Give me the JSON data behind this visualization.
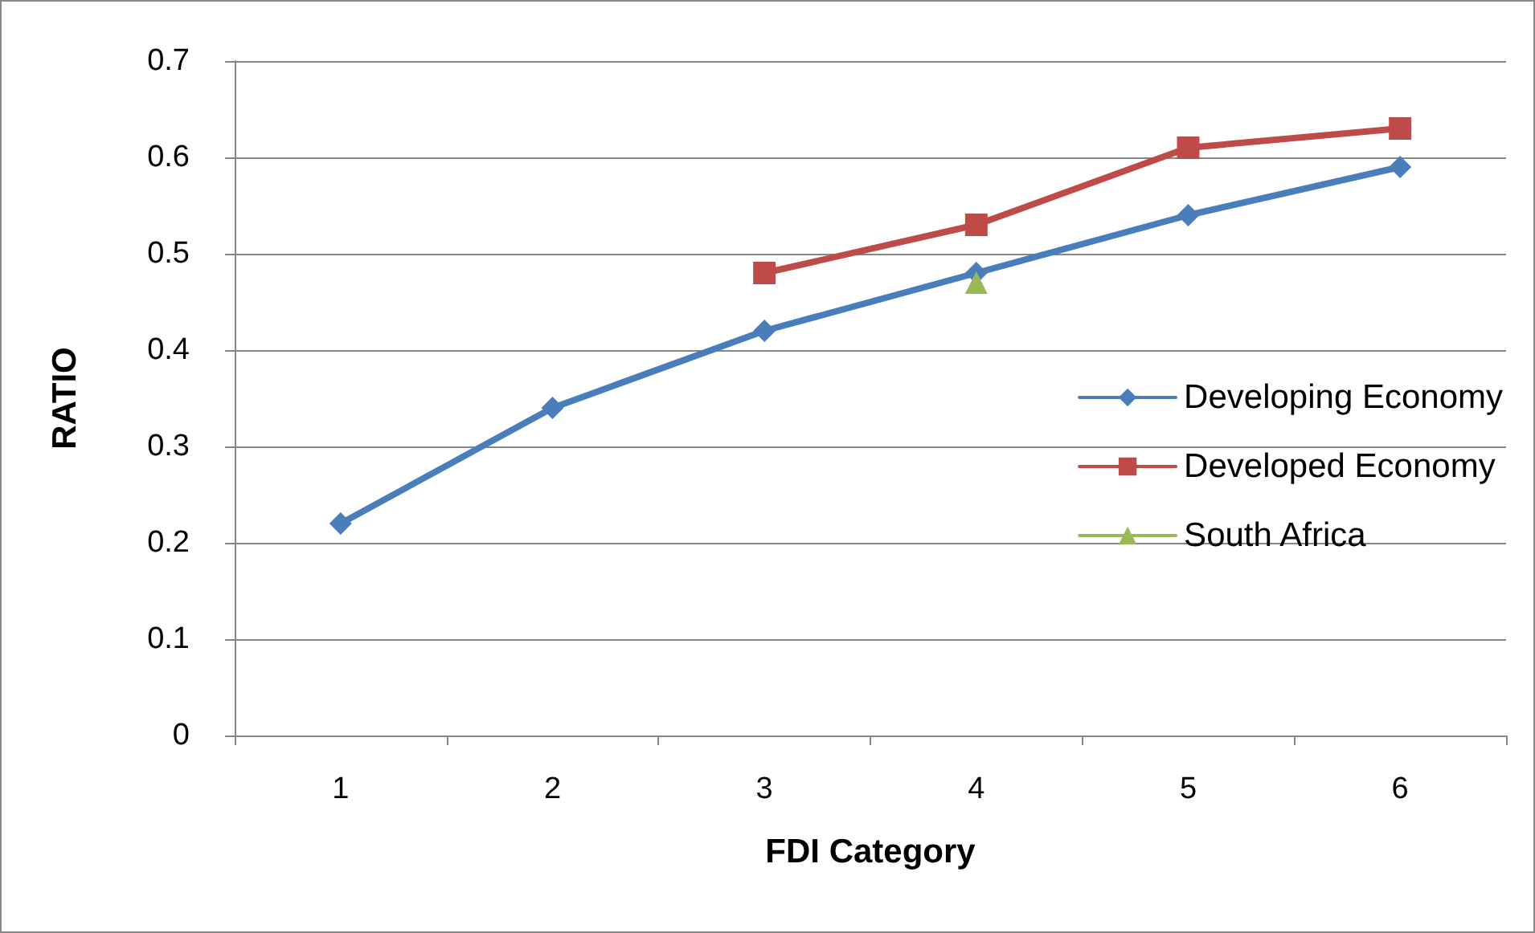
{
  "chart_data": {
    "type": "line",
    "xlabel": "FDI Category",
    "ylabel": "RATIO",
    "categories": [
      "1",
      "2",
      "3",
      "4",
      "5",
      "6"
    ],
    "series": [
      {
        "name": "Developing Economy",
        "color": "#4a7ebb",
        "marker": "diamond",
        "values": [
          0.22,
          0.34,
          0.42,
          0.48,
          0.54,
          0.59
        ]
      },
      {
        "name": "Developed Economy",
        "color": "#be4b48",
        "marker": "square",
        "values": [
          null,
          null,
          0.48,
          0.53,
          0.61,
          0.63
        ]
      },
      {
        "name": "South Africa",
        "color": "#98b954",
        "marker": "triangle",
        "values": [
          null,
          null,
          null,
          0.47,
          null,
          null
        ]
      }
    ],
    "ylim": [
      0,
      0.7
    ],
    "yticks": [
      0,
      0.1,
      0.2,
      0.3,
      0.4,
      0.5,
      0.6,
      0.7
    ],
    "grid": "y",
    "legend": "right"
  }
}
